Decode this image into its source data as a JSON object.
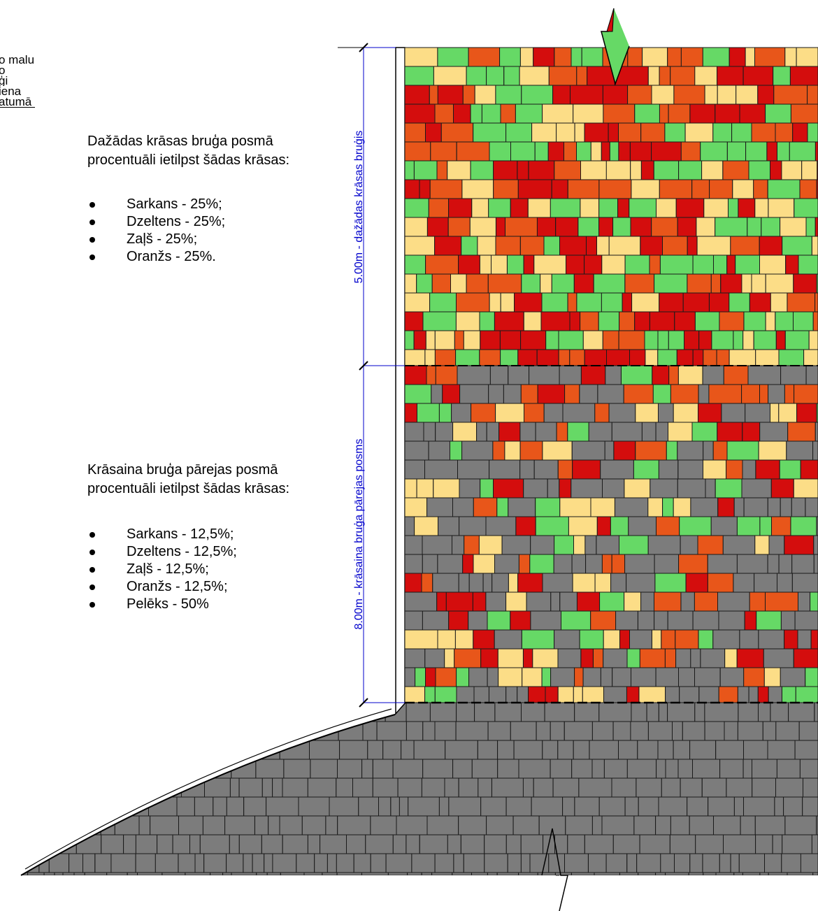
{
  "fragment_lines": [
    "o malu",
    "o",
    "ģi",
    "iena",
    "atumā"
  ],
  "section1": {
    "heading_line1": "Dažādas krāsas bruģa posmā",
    "heading_line2": "procentuāli ietilpst šādas krāsas:",
    "items": [
      "Sarkans - 25%;",
      "Dzeltens - 25%;",
      "Zaļš - 25%;",
      "Oranžs - 25%."
    ]
  },
  "section2": {
    "heading_line1": "Krāsaina bruģa pārejas posmā",
    "heading_line2": "procentuāli ietilpst šādas krāsas:",
    "items": [
      "Sarkans - 12,5%;",
      "Dzeltens - 12,5%;",
      "Zaļš - 12,5%;",
      "Oranžs - 12,5%;",
      "Pelēks - 50%"
    ]
  },
  "dimensions": {
    "upper_label": "5.00m - dažādas krāsas bruģis",
    "lower_label": "8.00m - krāsaina bruģa pārejas posms",
    "color": "#0000cc"
  },
  "colors": {
    "red": "#d40d0d",
    "yellow": "#fcdd87",
    "green": "#66d966",
    "orange": "#e8561a",
    "gray": "#7c7c7c",
    "outline": "#1a1a1a"
  },
  "mix": {
    "colored_zone": {
      "red": 0.25,
      "yellow": 0.25,
      "green": 0.25,
      "orange": 0.25
    },
    "transition_zone": {
      "red": 0.125,
      "yellow": 0.125,
      "green": 0.125,
      "orange": 0.125,
      "gray": 0.5
    }
  }
}
